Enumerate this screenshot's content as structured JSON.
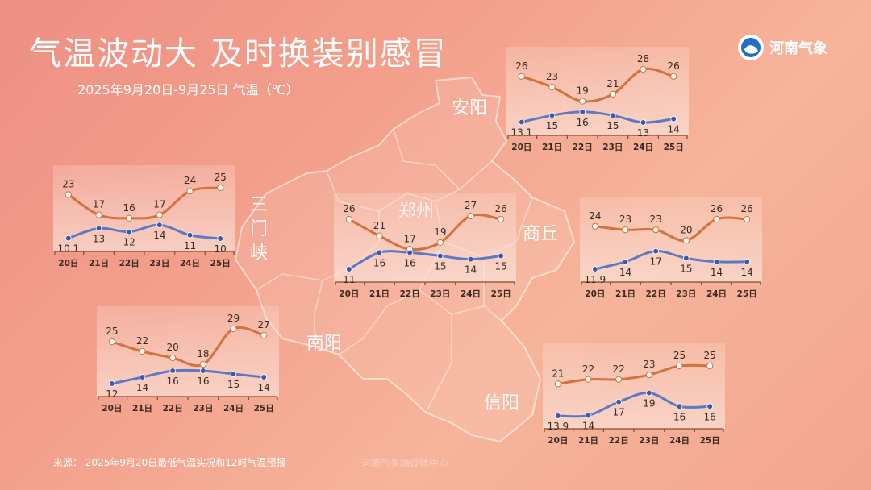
{
  "title": "气温波动大 及时换装别感冒",
  "subtitle": "2025年9月20日-9月25日 气温（℃）",
  "logo": {
    "name": "河南气象",
    "icon": "weather-agency-logo"
  },
  "source": "来源： 2025年9月20日最低气温实况和12时气温预报",
  "credit": "河南气象融媒体中心",
  "cities": {
    "anyang": "安阳",
    "sanmenxia": "三门峡",
    "zhengzhou": "郑州",
    "shangqiu": "商丘",
    "nanyang": "南阳",
    "xinyang": "信阳"
  },
  "colors": {
    "high": "#d5713b",
    "low": "#5b79c4"
  },
  "chart_data": [
    {
      "type": "line",
      "city": "安阳",
      "x": [
        "20日",
        "21日",
        "22日",
        "23日",
        "24日",
        "25日"
      ],
      "series": [
        {
          "values": [
            26,
            23,
            19,
            21,
            28,
            26
          ]
        },
        {
          "values": [
            13.1,
            15,
            16,
            15,
            13,
            14
          ]
        }
      ]
    },
    {
      "type": "line",
      "city": "三门峡",
      "x": [
        "20日",
        "21日",
        "22日",
        "23日",
        "24日",
        "25日"
      ],
      "series": [
        {
          "values": [
            23,
            17,
            16,
            17,
            24,
            25
          ]
        },
        {
          "values": [
            10.1,
            13,
            12,
            14,
            11,
            10
          ]
        }
      ]
    },
    {
      "type": "line",
      "city": "郑州",
      "x": [
        "20日",
        "21日",
        "22日",
        "23日",
        "24日",
        "25日"
      ],
      "series": [
        {
          "values": [
            26,
            21,
            17,
            19,
            27,
            26
          ]
        },
        {
          "values": [
            11,
            16,
            16,
            15,
            14,
            15
          ]
        }
      ]
    },
    {
      "type": "line",
      "city": "商丘",
      "x": [
        "20日",
        "21日",
        "22日",
        "23日",
        "24日",
        "25日"
      ],
      "series": [
        {
          "values": [
            24,
            23,
            23,
            20,
            26,
            26
          ]
        },
        {
          "values": [
            11.9,
            14,
            17,
            15,
            14,
            14
          ]
        }
      ]
    },
    {
      "type": "line",
      "city": "南阳",
      "x": [
        "20日",
        "21日",
        "22日",
        "23日",
        "24日",
        "25日"
      ],
      "series": [
        {
          "values": [
            25,
            22,
            20,
            18,
            29,
            27
          ]
        },
        {
          "values": [
            12,
            14,
            16,
            16,
            15,
            14
          ]
        }
      ]
    },
    {
      "type": "line",
      "city": "信阳",
      "x": [
        "20日",
        "21日",
        "22日",
        "23日",
        "24日",
        "25日"
      ],
      "series": [
        {
          "values": [
            21,
            22,
            22,
            23,
            25,
            25
          ]
        },
        {
          "values": [
            13.9,
            14,
            17,
            19,
            16,
            16
          ]
        }
      ]
    }
  ]
}
